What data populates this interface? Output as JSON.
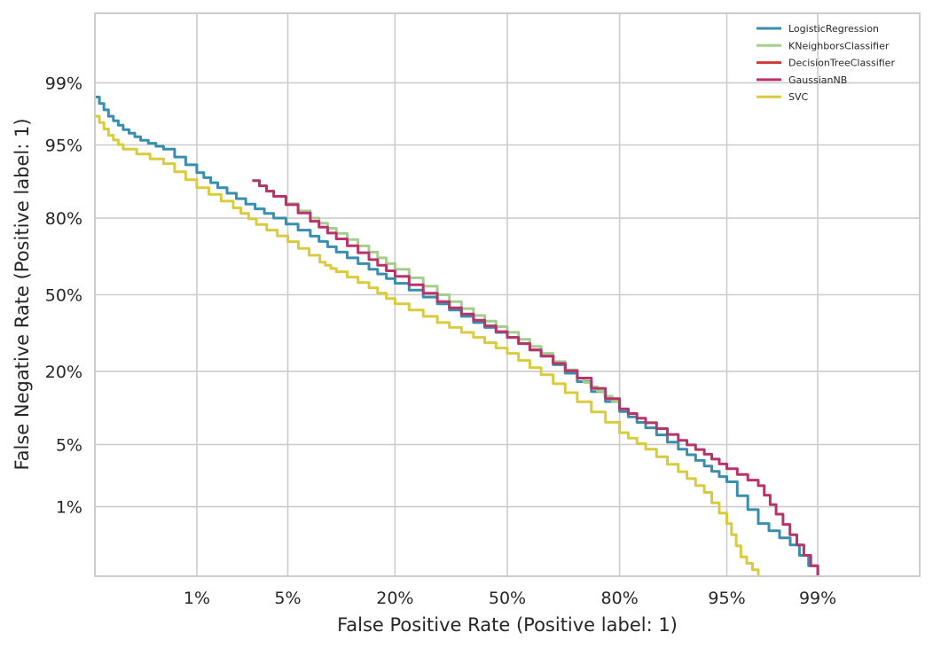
{
  "chart_data": {
    "type": "line",
    "xlabel": "False Positive Rate (Positive label: 1)",
    "ylabel": "False Negative Rate (Positive label: 1)",
    "x_scale": "normal-deviate",
    "y_scale": "normal-deviate",
    "xlim": [
      0.001,
      0.999
    ],
    "ylim": [
      0.001,
      0.999
    ],
    "x_ticks": [
      {
        "value": 0.01,
        "label": "1%"
      },
      {
        "value": 0.05,
        "label": "5%"
      },
      {
        "value": 0.2,
        "label": "20%"
      },
      {
        "value": 0.5,
        "label": "50%"
      },
      {
        "value": 0.8,
        "label": "80%"
      },
      {
        "value": 0.95,
        "label": "95%"
      },
      {
        "value": 0.99,
        "label": "99%"
      }
    ],
    "y_ticks": [
      {
        "value": 0.01,
        "label": "1%"
      },
      {
        "value": 0.05,
        "label": "5%"
      },
      {
        "value": 0.2,
        "label": "20%"
      },
      {
        "value": 0.5,
        "label": "50%"
      },
      {
        "value": 0.8,
        "label": "80%"
      },
      {
        "value": 0.95,
        "label": "95%"
      },
      {
        "value": 0.99,
        "label": "99%"
      }
    ],
    "grid": true,
    "legend_position": "top-right",
    "series": [
      {
        "name": "LogisticRegression",
        "color": "#3a8ead",
        "points": [
          [
            0.001,
            0.985
          ],
          [
            0.0014,
            0.975
          ],
          [
            0.002,
            0.965
          ],
          [
            0.003,
            0.955
          ],
          [
            0.005,
            0.945
          ],
          [
            0.01,
            0.91
          ],
          [
            0.015,
            0.88
          ],
          [
            0.025,
            0.84
          ],
          [
            0.04,
            0.8
          ],
          [
            0.07,
            0.74
          ],
          [
            0.1,
            0.68
          ],
          [
            0.15,
            0.61
          ],
          [
            0.2,
            0.55
          ],
          [
            0.3,
            0.46
          ],
          [
            0.4,
            0.38
          ],
          [
            0.5,
            0.32
          ],
          [
            0.6,
            0.25
          ],
          [
            0.7,
            0.17
          ],
          [
            0.8,
            0.1
          ],
          [
            0.85,
            0.072
          ],
          [
            0.9,
            0.045
          ],
          [
            0.93,
            0.03
          ],
          [
            0.95,
            0.02
          ],
          [
            0.97,
            0.006
          ],
          [
            0.983,
            0.003
          ],
          [
            0.99,
            0.001
          ]
        ]
      },
      {
        "name": "KNeighborsClassifier",
        "color": "#a5cd8c",
        "points": [
          [
            0.028,
            0.895
          ],
          [
            0.04,
            0.86
          ],
          [
            0.07,
            0.8
          ],
          [
            0.1,
            0.75
          ],
          [
            0.15,
            0.68
          ],
          [
            0.2,
            0.61
          ],
          [
            0.3,
            0.5
          ],
          [
            0.4,
            0.41
          ],
          [
            0.5,
            0.34
          ],
          [
            0.6,
            0.26
          ],
          [
            0.7,
            0.18
          ],
          [
            0.75,
            0.145
          ],
          [
            0.8,
            0.11
          ]
        ]
      },
      {
        "name": "DecisionTreeClassifier",
        "color": "#d03838",
        "points": []
      },
      {
        "name": "GaussianNB",
        "color": "#b8336a",
        "points": [
          [
            0.028,
            0.895
          ],
          [
            0.04,
            0.86
          ],
          [
            0.07,
            0.79
          ],
          [
            0.1,
            0.73
          ],
          [
            0.15,
            0.65
          ],
          [
            0.2,
            0.58
          ],
          [
            0.3,
            0.47
          ],
          [
            0.4,
            0.39
          ],
          [
            0.5,
            0.32
          ],
          [
            0.6,
            0.25
          ],
          [
            0.7,
            0.18
          ],
          [
            0.8,
            0.105
          ],
          [
            0.85,
            0.08
          ],
          [
            0.9,
            0.055
          ],
          [
            0.93,
            0.04
          ],
          [
            0.95,
            0.028
          ],
          [
            0.97,
            0.018
          ],
          [
            0.978,
            0.008
          ],
          [
            0.985,
            0.003
          ],
          [
            0.99,
            0.001
          ]
        ]
      },
      {
        "name": "SVC",
        "color": "#d9cc3c",
        "points": [
          [
            0.001,
            0.975
          ],
          [
            0.0014,
            0.96
          ],
          [
            0.002,
            0.945
          ],
          [
            0.005,
            0.925
          ],
          [
            0.01,
            0.88
          ],
          [
            0.02,
            0.83
          ],
          [
            0.03,
            0.78
          ],
          [
            0.05,
            0.72
          ],
          [
            0.08,
            0.64
          ],
          [
            0.1,
            0.6
          ],
          [
            0.15,
            0.53
          ],
          [
            0.2,
            0.46
          ],
          [
            0.3,
            0.38
          ],
          [
            0.4,
            0.32
          ],
          [
            0.5,
            0.26
          ],
          [
            0.6,
            0.19
          ],
          [
            0.7,
            0.12
          ],
          [
            0.8,
            0.065
          ],
          [
            0.85,
            0.045
          ],
          [
            0.9,
            0.026
          ],
          [
            0.93,
            0.015
          ],
          [
            0.95,
            0.006
          ],
          [
            0.96,
            0.002
          ],
          [
            0.97,
            0.001
          ]
        ]
      }
    ]
  }
}
